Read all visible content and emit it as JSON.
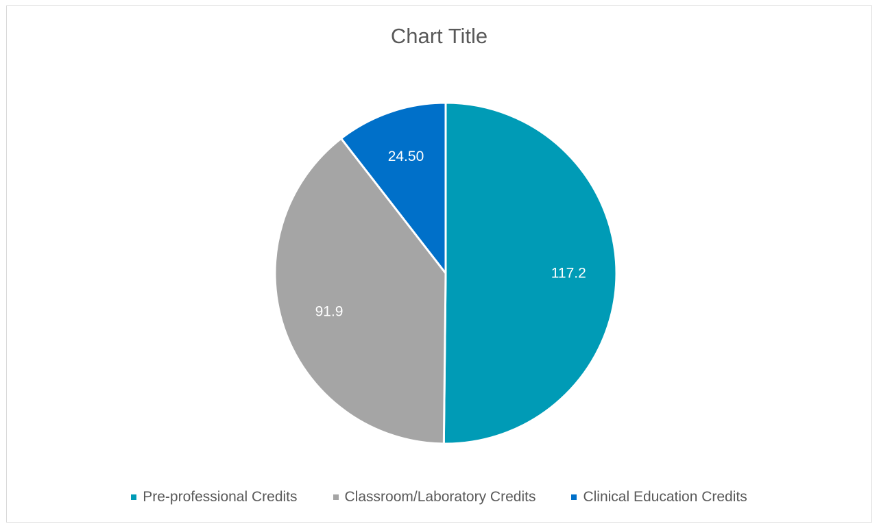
{
  "chart_data": {
    "type": "pie",
    "title": "Chart Title",
    "categories": [
      "Pre-professional Credits",
      "Classroom/Laboratory Credits",
      "Clinical Education Credits"
    ],
    "values": [
      117.2,
      91.9,
      24.5
    ],
    "data_labels": [
      "117.2",
      "91.9",
      "24.50"
    ],
    "colors": [
      "#009BB6",
      "#A5A5A5",
      "#0070C9"
    ],
    "legend_position": "bottom",
    "start_angle": "top",
    "direction": "clockwise"
  }
}
